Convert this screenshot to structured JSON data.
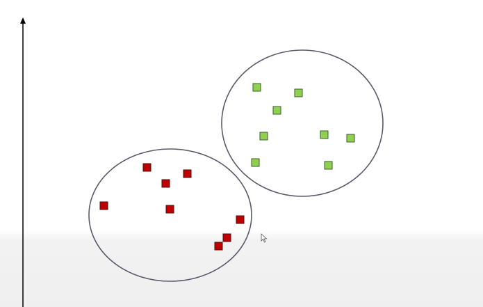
{
  "diagram": {
    "title": "",
    "clusters": [
      {
        "name": "red-cluster",
        "color": "#c00000",
        "points": 8
      },
      {
        "name": "green-cluster",
        "color": "#8fd14f",
        "points": 8
      }
    ],
    "outline_color": "#5a5a6a",
    "axis_color": "#000000"
  }
}
